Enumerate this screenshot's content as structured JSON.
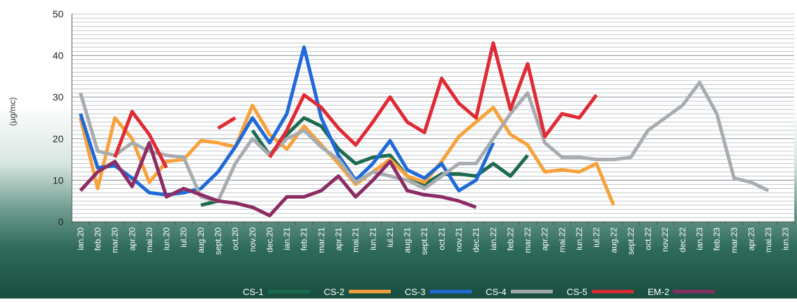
{
  "chart_data": {
    "type": "line",
    "title": "",
    "ylabel": "(µg/mc)",
    "xlabel": "",
    "ylim": [
      0,
      50
    ],
    "yticks": [
      0,
      10,
      20,
      30,
      40,
      50
    ],
    "grid": true,
    "legend": "bottom",
    "categories": [
      "ian.20",
      "feb.20",
      "mar.20",
      "apr.20",
      "mai.20",
      "iun.20",
      "iul.20",
      "aug.20",
      "sept.20",
      "oct.20",
      "nov.20",
      "dec.20",
      "ian.21",
      "feb.21",
      "mar.21",
      "apr.21",
      "mai.21",
      "iun.21",
      "iul.21",
      "aug.21",
      "sept.21",
      "oct.21",
      "nov.21",
      "dec.21",
      "ian.22",
      "feb.22",
      "mar.22",
      "apr.22",
      "mai.22",
      "iun.22",
      "iul.22",
      "aug.22",
      "sept.22",
      "oct.22",
      "nov.22",
      "dec.22",
      "ian.23",
      "feb.23",
      "mar.23",
      "apr.23",
      "mai.23",
      "iun.23"
    ],
    "series": [
      {
        "name": "CS-1",
        "color": "#1d6b4e",
        "values": [
          null,
          null,
          null,
          null,
          null,
          null,
          null,
          4,
          5,
          null,
          22,
          16,
          21,
          25,
          23,
          17.5,
          14,
          15.5,
          16,
          11,
          9,
          11.5,
          11.5,
          11,
          14,
          11,
          16,
          null,
          null,
          null,
          null,
          null,
          null,
          null,
          null,
          null,
          null,
          null,
          null,
          null,
          null,
          null
        ]
      },
      {
        "name": "CS-2",
        "color": "#f7a23a",
        "values": [
          25,
          8,
          25,
          20,
          9.5,
          14.5,
          15,
          19.5,
          19,
          18,
          28,
          21,
          17.5,
          23,
          18.5,
          14,
          9,
          12,
          15,
          11,
          9.5,
          14.5,
          20.5,
          24,
          27.5,
          21,
          18.5,
          12,
          12.5,
          12,
          14,
          4,
          null,
          null,
          null,
          null,
          null,
          null,
          null,
          null,
          null,
          null
        ]
      },
      {
        "name": "CS-3",
        "color": "#1f6ad8",
        "values": [
          26,
          13,
          13.5,
          10.5,
          7,
          6.5,
          7,
          8,
          12,
          18,
          25,
          19,
          26,
          42,
          25,
          16,
          10,
          14,
          19.5,
          12.5,
          10.5,
          14,
          7.5,
          10,
          19,
          null,
          null,
          null,
          null,
          null,
          null,
          null,
          null,
          null,
          null,
          null,
          null,
          null,
          null,
          null,
          null,
          null
        ]
      },
      {
        "name": "CS-4",
        "color": "#a9acaf",
        "values": [
          31,
          17,
          16,
          19,
          17,
          16,
          15.5,
          6,
          5,
          14,
          20,
          16,
          20,
          22,
          18,
          15,
          9.5,
          12,
          11,
          10,
          8,
          11,
          14,
          14,
          20,
          26,
          31,
          19,
          15.5,
          15.5,
          15,
          15,
          15.5,
          22,
          25,
          28,
          33.5,
          26,
          10.5,
          9.5,
          7.5,
          null
        ]
      },
      {
        "name": "CS-5",
        "color": "#e02b35",
        "values": [
          null,
          null,
          15.5,
          26.5,
          21,
          13,
          null,
          null,
          22.5,
          25,
          null,
          15.5,
          22,
          30.5,
          27.5,
          22.5,
          18.5,
          24,
          30,
          24,
          21.5,
          34.5,
          28.5,
          25,
          43,
          27,
          38,
          20.5,
          26,
          25,
          30.5,
          null,
          null,
          null,
          null,
          null,
          null,
          null,
          null,
          null,
          null,
          null
        ]
      },
      {
        "name": "EM-2",
        "color": "#8b2c63",
        "values": [
          7.5,
          12,
          14.5,
          8.5,
          19,
          6,
          8,
          6.5,
          5,
          4.5,
          3.5,
          1.5,
          6,
          6,
          7.5,
          11,
          6,
          10,
          14.5,
          7.5,
          6.5,
          6,
          5,
          3.5,
          null,
          null,
          null,
          null,
          null,
          null,
          null,
          null,
          null,
          null,
          null,
          null,
          null,
          null,
          null,
          null,
          null,
          null
        ]
      }
    ]
  }
}
